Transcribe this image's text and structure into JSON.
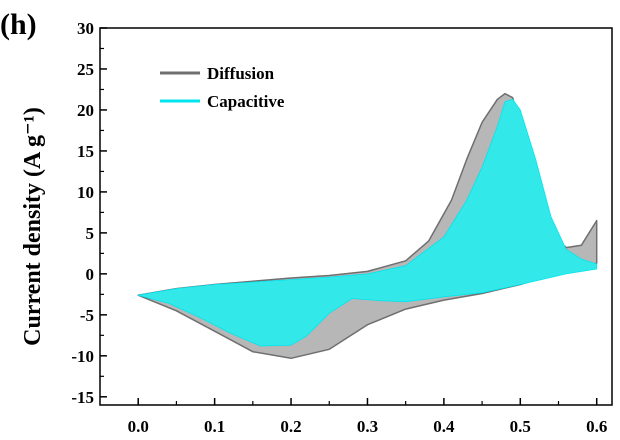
{
  "chart_data": {
    "type": "area",
    "panel_label": "(h)",
    "ylabel": "Current density (A g⁻¹)",
    "xlabel": "",
    "xlim": [
      -0.05,
      0.62
    ],
    "ylim": [
      -16,
      30
    ],
    "x_ticks": [
      0.0,
      0.1,
      0.2,
      0.3,
      0.4,
      0.5,
      0.6
    ],
    "x_tick_labels": [
      "0.0",
      "0.1",
      "0.2",
      "0.3",
      "0.4",
      "0.5",
      "0.6"
    ],
    "y_ticks": [
      -15,
      -10,
      -5,
      0,
      5,
      10,
      15,
      20,
      25,
      30
    ],
    "y_tick_labels": [
      "-15",
      "-10",
      "-5",
      "0",
      "5",
      "10",
      "15",
      "20",
      "25",
      "30"
    ],
    "legend_position": "top-left",
    "series": [
      {
        "name": "Diffusion",
        "color": "#b7b7b7",
        "line_color": "#6f6f6f",
        "x": [
          0.0,
          0.05,
          0.1,
          0.15,
          0.2,
          0.25,
          0.3,
          0.35,
          0.38,
          0.41,
          0.43,
          0.45,
          0.47,
          0.48,
          0.49,
          0.5,
          0.52,
          0.54,
          0.56,
          0.58,
          0.6,
          0.6,
          0.58,
          0.55,
          0.5,
          0.45,
          0.4,
          0.35,
          0.3,
          0.25,
          0.2,
          0.15,
          0.1,
          0.05,
          0.0
        ],
        "y": [
          -2.6,
          -1.8,
          -1.3,
          -0.9,
          -0.5,
          -0.2,
          0.3,
          1.6,
          4.0,
          9.0,
          14.0,
          18.5,
          21.3,
          22.0,
          21.5,
          18.0,
          10.0,
          5.0,
          3.2,
          3.5,
          6.5,
          1.3,
          0.7,
          0.2,
          -1.3,
          -2.4,
          -3.2,
          -4.3,
          -6.2,
          -9.2,
          -10.3,
          -9.5,
          -7.0,
          -4.5,
          -2.6
        ]
      },
      {
        "name": "Capacitive",
        "color": "#33e8e8",
        "line_color": "#00e5ee",
        "x": [
          0.0,
          0.05,
          0.1,
          0.15,
          0.2,
          0.25,
          0.3,
          0.35,
          0.4,
          0.43,
          0.45,
          0.47,
          0.48,
          0.49,
          0.5,
          0.52,
          0.54,
          0.56,
          0.58,
          0.6,
          0.6,
          0.56,
          0.5,
          0.45,
          0.4,
          0.35,
          0.32,
          0.28,
          0.25,
          0.22,
          0.2,
          0.16,
          0.12,
          0.08,
          0.04,
          0.0
        ],
        "y": [
          -2.6,
          -1.8,
          -1.3,
          -1.0,
          -0.7,
          -0.4,
          0.0,
          1.0,
          4.5,
          9.0,
          13.0,
          18.0,
          21.0,
          21.3,
          20.0,
          14.0,
          7.0,
          3.0,
          1.8,
          1.2,
          0.6,
          0.0,
          -1.3,
          -2.3,
          -2.8,
          -3.4,
          -3.3,
          -3.0,
          -4.8,
          -7.6,
          -8.7,
          -8.8,
          -7.2,
          -5.3,
          -3.6,
          -2.6
        ]
      }
    ]
  }
}
